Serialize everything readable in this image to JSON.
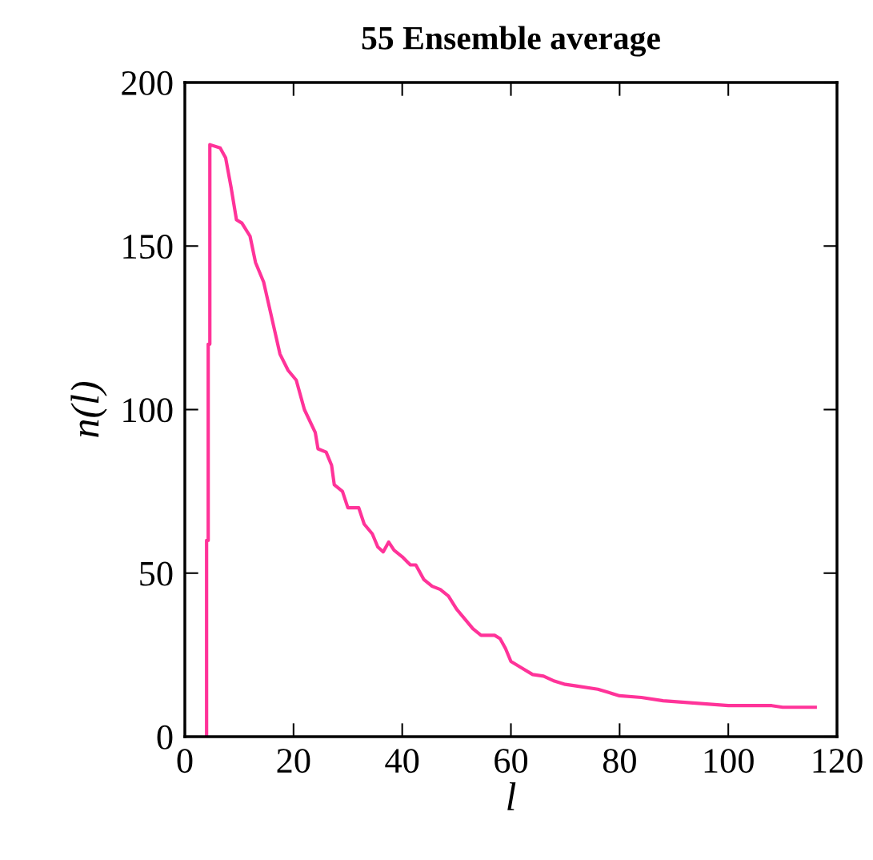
{
  "chart_data": {
    "type": "line",
    "title": "55 Ensemble average",
    "xlabel": "l",
    "ylabel": "n(l)",
    "xlim": [
      0,
      120
    ],
    "xticks": [
      0,
      20,
      40,
      60,
      80,
      100,
      120
    ],
    "ylim": [
      0,
      200
    ],
    "yticks": [
      0,
      50,
      100,
      150,
      200
    ],
    "grid": false,
    "legend": false,
    "series": [
      {
        "color": "#ff3399",
        "x": [
          4,
          4,
          4.3,
          4.3,
          4.6,
          4.6,
          6.5,
          7.5,
          8.5,
          9.5,
          10.5,
          12,
          13,
          14.5,
          16,
          17.5,
          19,
          20.5,
          22,
          24,
          24.5,
          26,
          27,
          27.5,
          29,
          30,
          32,
          33,
          34.5,
          35.5,
          36.5,
          37.5,
          38.5,
          40,
          41.5,
          42.5,
          44,
          45.5,
          47,
          48.5,
          50,
          51.5,
          53,
          54.5,
          57,
          58,
          59,
          60,
          62,
          64,
          66,
          68,
          70,
          72,
          76,
          78,
          80,
          84,
          88,
          92,
          96,
          100,
          108,
          110,
          116
        ],
        "values": [
          0,
          60,
          60,
          120,
          120,
          181,
          180,
          177,
          168,
          158,
          157,
          153,
          145,
          139,
          128,
          117,
          112,
          109,
          100,
          93,
          88,
          87,
          83,
          77,
          75,
          70,
          70,
          65,
          62,
          58,
          56.5,
          59.5,
          57,
          55,
          52.5,
          52.5,
          48,
          46,
          45,
          43,
          39,
          36,
          33,
          31,
          31,
          30,
          27,
          23,
          21,
          19,
          18.5,
          17,
          16,
          15.5,
          14.5,
          13.5,
          12.5,
          12,
          11,
          10.5,
          10,
          9.5,
          9.5,
          9,
          9
        ]
      }
    ]
  }
}
